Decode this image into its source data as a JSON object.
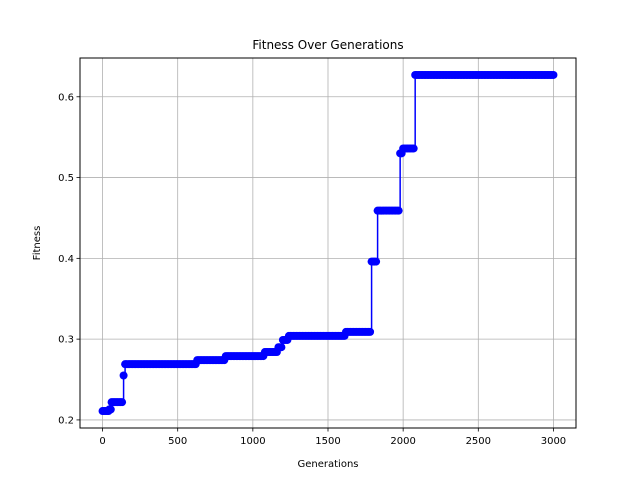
{
  "chart_data": {
    "type": "line",
    "title": "Fitness Over Generations",
    "xlabel": "Generations",
    "ylabel": "Fitness",
    "xlim": [
      -150,
      3150
    ],
    "ylim": [
      0.19,
      0.648
    ],
    "xticks": [
      0,
      500,
      1000,
      1500,
      2000,
      2500,
      3000
    ],
    "yticks": [
      0.2,
      0.3,
      0.4,
      0.5,
      0.6
    ],
    "xtick_labels": [
      "0",
      "500",
      "1000",
      "1500",
      "2000",
      "2500",
      "3000"
    ],
    "ytick_labels": [
      "0.2",
      "0.3",
      "0.4",
      "0.5",
      "0.6"
    ],
    "grid": true,
    "marker": "circle",
    "series": [
      {
        "color": "#0000ff",
        "steps": [
          {
            "x": 0,
            "y": 0.211
          },
          {
            "x": 45,
            "y": 0.213
          },
          {
            "x": 60,
            "y": 0.222
          },
          {
            "x": 140,
            "y": 0.255
          },
          {
            "x": 150,
            "y": 0.269
          },
          {
            "x": 630,
            "y": 0.274
          },
          {
            "x": 820,
            "y": 0.279
          },
          {
            "x": 1080,
            "y": 0.284
          },
          {
            "x": 1170,
            "y": 0.29
          },
          {
            "x": 1200,
            "y": 0.299
          },
          {
            "x": 1240,
            "y": 0.304
          },
          {
            "x": 1620,
            "y": 0.309
          },
          {
            "x": 1790,
            "y": 0.396
          },
          {
            "x": 1830,
            "y": 0.459
          },
          {
            "x": 1980,
            "y": 0.53
          },
          {
            "x": 2000,
            "y": 0.536
          },
          {
            "x": 2080,
            "y": 0.627
          }
        ],
        "x_end": 3000
      }
    ]
  }
}
